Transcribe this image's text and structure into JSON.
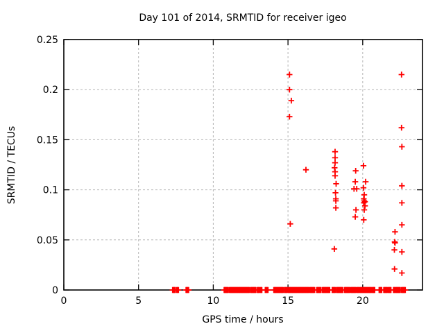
{
  "window": {
    "title": "Day 101 of 2014, SRMTID for receiver igeo"
  },
  "colors": {
    "marker": "#ff0000",
    "grid": "#b4b4b4",
    "border": "#000000",
    "background": "#ffffff",
    "text": "#000000"
  },
  "chart_data": {
    "type": "scatter",
    "title": "Day 101 of 2014, SRMTID for receiver igeo",
    "xlabel": "GPS time / hours",
    "ylabel": "SRMTID / TECUs",
    "xlim": [
      0,
      24
    ],
    "ylim": [
      0,
      0.25
    ],
    "xticks": {
      "values": [
        0,
        5,
        10,
        15,
        20
      ],
      "labels": [
        "0",
        "5",
        "10",
        "15",
        "20"
      ]
    },
    "yticks": {
      "values": [
        0,
        0.05,
        0.1,
        0.15,
        0.2,
        0.25
      ],
      "labels": [
        "0",
        "0.05",
        "0.1",
        "0.15",
        "0.2",
        "0.25"
      ]
    },
    "grid": true,
    "legend": "none",
    "marker": {
      "shape": "plus",
      "color": "#ff0000",
      "size": 9
    },
    "series": [
      {
        "name": "SRMTID",
        "points": [
          [
            15.1,
            0.215
          ],
          [
            15.1,
            0.2
          ],
          [
            15.22,
            0.189
          ],
          [
            15.1,
            0.173
          ],
          [
            15.15,
            0.066
          ],
          [
            16.2,
            0.12
          ],
          [
            18.15,
            0.138
          ],
          [
            18.15,
            0.132
          ],
          [
            18.15,
            0.127
          ],
          [
            18.12,
            0.122
          ],
          [
            18.15,
            0.118
          ],
          [
            18.15,
            0.114
          ],
          [
            18.22,
            0.106
          ],
          [
            18.18,
            0.097
          ],
          [
            18.2,
            0.091
          ],
          [
            18.2,
            0.089
          ],
          [
            18.2,
            0.082
          ],
          [
            18.1,
            0.041
          ],
          [
            19.53,
            0.119
          ],
          [
            19.5,
            0.108
          ],
          [
            19.42,
            0.101
          ],
          [
            19.6,
            0.101
          ],
          [
            19.55,
            0.08
          ],
          [
            19.5,
            0.073
          ],
          [
            20.05,
            0.124
          ],
          [
            20.2,
            0.108
          ],
          [
            20.05,
            0.102
          ],
          [
            20.1,
            0.095
          ],
          [
            20.07,
            0.091
          ],
          [
            20.1,
            0.089
          ],
          [
            20.15,
            0.088
          ],
          [
            20.07,
            0.087
          ],
          [
            20.15,
            0.084
          ],
          [
            20.1,
            0.08
          ],
          [
            20.07,
            0.07
          ],
          [
            22.16,
            0.058
          ],
          [
            22.14,
            0.048
          ],
          [
            22.16,
            0.047
          ],
          [
            22.12,
            0.04
          ],
          [
            22.13,
            0.021
          ],
          [
            22.6,
            0.215
          ],
          [
            22.6,
            0.162
          ],
          [
            22.62,
            0.143
          ],
          [
            22.62,
            0.104
          ],
          [
            22.62,
            0.087
          ],
          [
            22.62,
            0.065
          ],
          [
            22.62,
            0.038
          ],
          [
            22.62,
            0.017
          ]
        ]
      }
    ],
    "zero_value_runs_hours": [
      [
        7.28,
        7.45
      ],
      [
        7.55,
        7.67
      ],
      [
        8.18,
        8.35
      ],
      [
        10.73,
        11.0
      ],
      [
        11.08,
        12.42
      ],
      [
        12.5,
        12.85
      ],
      [
        12.95,
        13.08
      ],
      [
        13.15,
        13.25
      ],
      [
        13.48,
        13.66
      ],
      [
        14.05,
        14.68
      ],
      [
        14.76,
        14.93
      ],
      [
        15.0,
        16.4
      ],
      [
        16.46,
        16.78
      ],
      [
        16.92,
        17.2
      ],
      [
        17.3,
        17.79
      ],
      [
        17.96,
        18.17
      ],
      [
        18.25,
        18.66
      ],
      [
        18.78,
        19.13
      ],
      [
        19.2,
        19.56
      ],
      [
        19.63,
        19.73
      ],
      [
        19.79,
        19.9
      ],
      [
        19.94,
        20.58
      ],
      [
        20.64,
        20.8
      ],
      [
        21.1,
        21.27
      ],
      [
        21.41,
        21.66
      ],
      [
        21.72,
        21.89
      ],
      [
        22.06,
        22.16
      ],
      [
        22.21,
        22.51
      ],
      [
        22.6,
        22.85
      ]
    ],
    "note": "zero_value_runs_hours are intervals of densely overlapping + markers at SRMTID = 0"
  }
}
